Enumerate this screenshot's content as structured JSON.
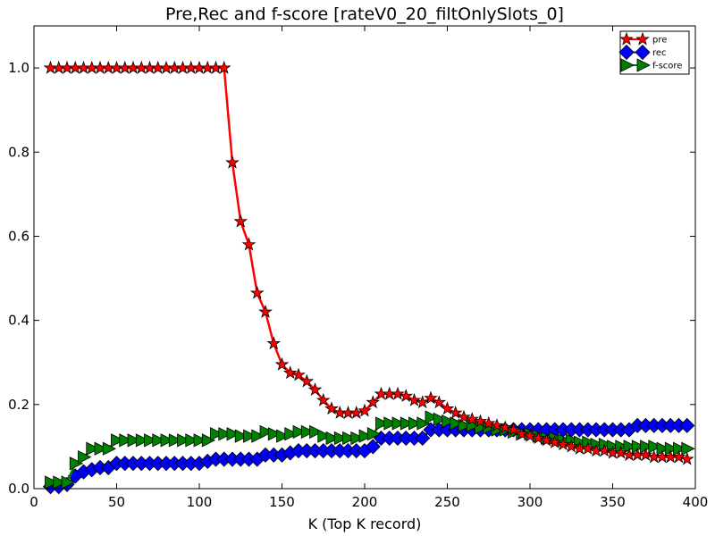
{
  "chart_data": {
    "type": "line",
    "title": "Pre,Rec and f-score [rateV0_20_filtOnlySlots_0]",
    "xlabel": "K (Top K record)",
    "ylabel": "",
    "xlim": [
      0,
      400
    ],
    "ylim": [
      0,
      1.1
    ],
    "xticks": [
      "0",
      "50",
      "100",
      "150",
      "200",
      "250",
      "300",
      "350",
      "400"
    ],
    "yticks": [
      "0.0",
      "0.2",
      "0.4",
      "0.6",
      "0.8",
      "1.0"
    ],
    "grid": false,
    "legend_position": "top-right",
    "x": [
      10,
      15,
      20,
      25,
      30,
      35,
      40,
      45,
      50,
      55,
      60,
      65,
      70,
      75,
      80,
      85,
      90,
      95,
      100,
      105,
      110,
      115,
      120,
      125,
      130,
      135,
      140,
      145,
      150,
      155,
      160,
      165,
      170,
      175,
      180,
      185,
      190,
      195,
      200,
      205,
      210,
      215,
      220,
      225,
      230,
      235,
      240,
      245,
      250,
      255,
      260,
      265,
      270,
      275,
      280,
      285,
      290,
      295,
      300,
      305,
      310,
      315,
      320,
      325,
      330,
      335,
      340,
      345,
      350,
      355,
      360,
      365,
      370,
      375,
      380,
      385,
      390,
      395
    ],
    "series": [
      {
        "name": "pre",
        "color": "#ff0000",
        "marker": "star",
        "values": [
          1.0,
          1.0,
          1.0,
          1.0,
          1.0,
          1.0,
          1.0,
          1.0,
          1.0,
          1.0,
          1.0,
          1.0,
          1.0,
          1.0,
          1.0,
          1.0,
          1.0,
          1.0,
          1.0,
          1.0,
          1.0,
          1.0,
          0.775,
          0.635,
          0.58,
          0.465,
          0.42,
          0.345,
          0.295,
          0.275,
          0.27,
          0.255,
          0.235,
          0.21,
          0.19,
          0.18,
          0.18,
          0.18,
          0.185,
          0.205,
          0.225,
          0.225,
          0.225,
          0.22,
          0.21,
          0.205,
          0.215,
          0.205,
          0.19,
          0.18,
          0.17,
          0.165,
          0.16,
          0.155,
          0.15,
          0.145,
          0.14,
          0.13,
          0.125,
          0.12,
          0.115,
          0.11,
          0.105,
          0.1,
          0.095,
          0.095,
          0.09,
          0.09,
          0.085,
          0.085,
          0.08,
          0.08,
          0.08,
          0.075,
          0.075,
          0.075,
          0.075,
          0.07
        ]
      },
      {
        "name": "rec",
        "color": "#0000ff",
        "marker": "diamond",
        "values": [
          0.005,
          0.005,
          0.01,
          0.03,
          0.04,
          0.045,
          0.05,
          0.05,
          0.06,
          0.06,
          0.06,
          0.06,
          0.06,
          0.06,
          0.06,
          0.06,
          0.06,
          0.06,
          0.06,
          0.065,
          0.07,
          0.07,
          0.07,
          0.07,
          0.07,
          0.07,
          0.08,
          0.08,
          0.08,
          0.085,
          0.09,
          0.09,
          0.09,
          0.09,
          0.09,
          0.09,
          0.09,
          0.09,
          0.09,
          0.1,
          0.12,
          0.12,
          0.12,
          0.12,
          0.12,
          0.12,
          0.14,
          0.14,
          0.14,
          0.14,
          0.14,
          0.14,
          0.14,
          0.14,
          0.14,
          0.14,
          0.14,
          0.14,
          0.14,
          0.14,
          0.14,
          0.14,
          0.14,
          0.14,
          0.14,
          0.14,
          0.14,
          0.14,
          0.14,
          0.14,
          0.14,
          0.15,
          0.15,
          0.15,
          0.15,
          0.15,
          0.15,
          0.15
        ]
      },
      {
        "name": "f-score",
        "color": "#008000",
        "marker": "triangle-right",
        "values": [
          0.015,
          0.015,
          0.015,
          0.06,
          0.075,
          0.095,
          0.095,
          0.095,
          0.115,
          0.115,
          0.115,
          0.115,
          0.115,
          0.115,
          0.115,
          0.115,
          0.115,
          0.115,
          0.115,
          0.115,
          0.13,
          0.13,
          0.13,
          0.125,
          0.125,
          0.125,
          0.135,
          0.13,
          0.125,
          0.13,
          0.135,
          0.135,
          0.135,
          0.125,
          0.12,
          0.12,
          0.12,
          0.12,
          0.125,
          0.13,
          0.155,
          0.155,
          0.155,
          0.155,
          0.155,
          0.155,
          0.17,
          0.165,
          0.16,
          0.155,
          0.15,
          0.15,
          0.145,
          0.145,
          0.14,
          0.14,
          0.135,
          0.13,
          0.13,
          0.125,
          0.12,
          0.12,
          0.115,
          0.115,
          0.11,
          0.11,
          0.105,
          0.105,
          0.1,
          0.1,
          0.1,
          0.1,
          0.1,
          0.1,
          0.095,
          0.095,
          0.095,
          0.095
        ]
      }
    ]
  }
}
